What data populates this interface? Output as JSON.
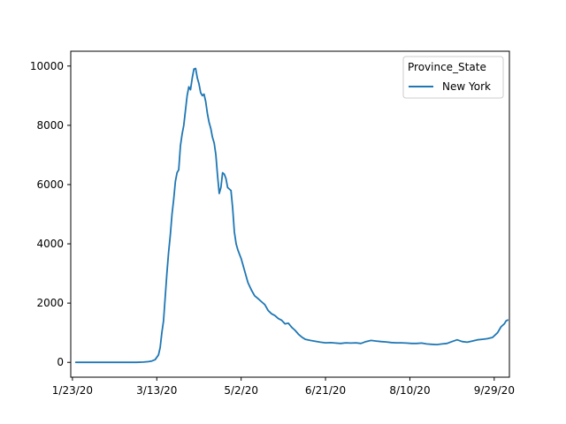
{
  "chart_data": {
    "type": "line",
    "x_axis": {
      "type": "date",
      "range": [
        "2020-01-22",
        "2020-10-08"
      ],
      "ticks": [
        {
          "date": "2020-01-23",
          "label": "1/23/20"
        },
        {
          "date": "2020-03-13",
          "label": "3/13/20"
        },
        {
          "date": "2020-05-02",
          "label": "5/2/20"
        },
        {
          "date": "2020-06-21",
          "label": "6/21/20"
        },
        {
          "date": "2020-08-10",
          "label": "8/10/20"
        },
        {
          "date": "2020-09-29",
          "label": "9/29/20"
        }
      ]
    },
    "y_axis": {
      "range": [
        -500,
        10500
      ],
      "ticks": [
        0,
        2000,
        4000,
        6000,
        8000,
        10000
      ]
    },
    "grid": false,
    "legend": {
      "title": "Province_State",
      "position": "top-right"
    },
    "series": [
      {
        "name": "New York",
        "color": "#1f77b4",
        "points": [
          [
            "2020-01-25",
            0
          ],
          [
            "2020-02-15",
            0
          ],
          [
            "2020-03-01",
            0
          ],
          [
            "2020-03-05",
            10
          ],
          [
            "2020-03-08",
            25
          ],
          [
            "2020-03-10",
            45
          ],
          [
            "2020-03-12",
            90
          ],
          [
            "2020-03-14",
            250
          ],
          [
            "2020-03-15",
            500
          ],
          [
            "2020-03-16",
            1000
          ],
          [
            "2020-03-17",
            1400
          ],
          [
            "2020-03-18",
            2200
          ],
          [
            "2020-03-19",
            3000
          ],
          [
            "2020-03-20",
            3700
          ],
          [
            "2020-03-21",
            4300
          ],
          [
            "2020-03-22",
            5000
          ],
          [
            "2020-03-23",
            5500
          ],
          [
            "2020-03-24",
            6100
          ],
          [
            "2020-03-25",
            6400
          ],
          [
            "2020-03-26",
            6500
          ],
          [
            "2020-03-27",
            7300
          ],
          [
            "2020-03-28",
            7700
          ],
          [
            "2020-03-29",
            8000
          ],
          [
            "2020-03-30",
            8500
          ],
          [
            "2020-03-31",
            9000
          ],
          [
            "2020-04-01",
            9300
          ],
          [
            "2020-04-02",
            9200
          ],
          [
            "2020-04-03",
            9600
          ],
          [
            "2020-04-04",
            9900
          ],
          [
            "2020-04-05",
            9920
          ],
          [
            "2020-04-06",
            9600
          ],
          [
            "2020-04-07",
            9400
          ],
          [
            "2020-04-08",
            9100
          ],
          [
            "2020-04-09",
            9000
          ],
          [
            "2020-04-10",
            9050
          ],
          [
            "2020-04-11",
            8800
          ],
          [
            "2020-04-12",
            8400
          ],
          [
            "2020-04-13",
            8100
          ],
          [
            "2020-04-14",
            7900
          ],
          [
            "2020-04-15",
            7600
          ],
          [
            "2020-04-16",
            7400
          ],
          [
            "2020-04-17",
            7000
          ],
          [
            "2020-04-18",
            6300
          ],
          [
            "2020-04-19",
            5700
          ],
          [
            "2020-04-20",
            5900
          ],
          [
            "2020-04-21",
            6400
          ],
          [
            "2020-04-22",
            6350
          ],
          [
            "2020-04-23",
            6200
          ],
          [
            "2020-04-24",
            5900
          ],
          [
            "2020-04-25",
            5850
          ],
          [
            "2020-04-26",
            5800
          ],
          [
            "2020-04-27",
            5200
          ],
          [
            "2020-04-28",
            4400
          ],
          [
            "2020-04-29",
            4000
          ],
          [
            "2020-04-30",
            3800
          ],
          [
            "2020-05-02",
            3500
          ],
          [
            "2020-05-04",
            3100
          ],
          [
            "2020-05-06",
            2700
          ],
          [
            "2020-05-08",
            2450
          ],
          [
            "2020-05-10",
            2250
          ],
          [
            "2020-05-12",
            2150
          ],
          [
            "2020-05-14",
            2050
          ],
          [
            "2020-05-16",
            1950
          ],
          [
            "2020-05-18",
            1750
          ],
          [
            "2020-05-20",
            1640
          ],
          [
            "2020-05-22",
            1580
          ],
          [
            "2020-05-24",
            1480
          ],
          [
            "2020-05-26",
            1420
          ],
          [
            "2020-05-28",
            1300
          ],
          [
            "2020-05-30",
            1320
          ],
          [
            "2020-06-01",
            1180
          ],
          [
            "2020-06-03",
            1080
          ],
          [
            "2020-06-05",
            950
          ],
          [
            "2020-06-07",
            850
          ],
          [
            "2020-06-09",
            780
          ],
          [
            "2020-06-12",
            740
          ],
          [
            "2020-06-15",
            710
          ],
          [
            "2020-06-18",
            680
          ],
          [
            "2020-06-21",
            660
          ],
          [
            "2020-06-24",
            665
          ],
          [
            "2020-06-27",
            650
          ],
          [
            "2020-06-30",
            640
          ],
          [
            "2020-07-03",
            660
          ],
          [
            "2020-07-06",
            650
          ],
          [
            "2020-07-09",
            660
          ],
          [
            "2020-07-12",
            640
          ],
          [
            "2020-07-15",
            700
          ],
          [
            "2020-07-18",
            740
          ],
          [
            "2020-07-21",
            720
          ],
          [
            "2020-07-24",
            700
          ],
          [
            "2020-07-27",
            690
          ],
          [
            "2020-07-30",
            670
          ],
          [
            "2020-08-02",
            660
          ],
          [
            "2020-08-05",
            660
          ],
          [
            "2020-08-08",
            650
          ],
          [
            "2020-08-11",
            640
          ],
          [
            "2020-08-14",
            640
          ],
          [
            "2020-08-17",
            650
          ],
          [
            "2020-08-20",
            620
          ],
          [
            "2020-08-23",
            610
          ],
          [
            "2020-08-26",
            600
          ],
          [
            "2020-08-29",
            620
          ],
          [
            "2020-09-01",
            640
          ],
          [
            "2020-09-04",
            700
          ],
          [
            "2020-09-07",
            760
          ],
          [
            "2020-09-10",
            700
          ],
          [
            "2020-09-13",
            680
          ],
          [
            "2020-09-16",
            720
          ],
          [
            "2020-09-19",
            760
          ],
          [
            "2020-09-22",
            780
          ],
          [
            "2020-09-25",
            800
          ],
          [
            "2020-09-28",
            840
          ],
          [
            "2020-10-01",
            1000
          ],
          [
            "2020-10-03",
            1200
          ],
          [
            "2020-10-05",
            1300
          ],
          [
            "2020-10-06",
            1400
          ],
          [
            "2020-10-07",
            1430
          ]
        ]
      }
    ]
  }
}
